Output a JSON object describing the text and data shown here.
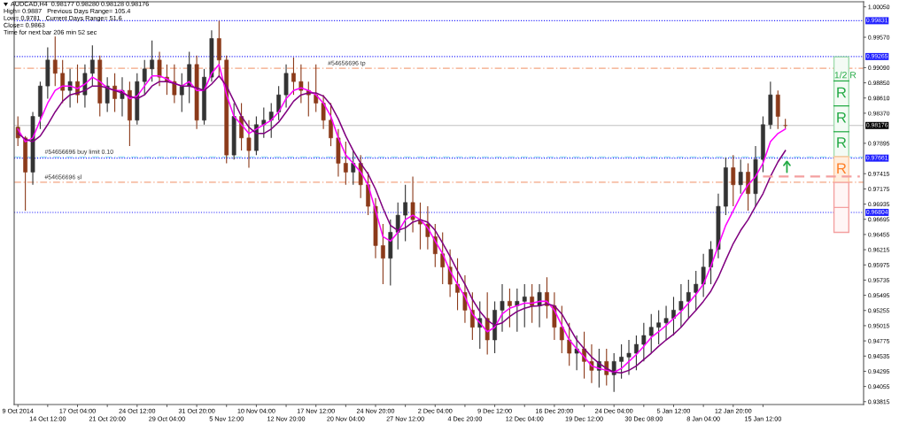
{
  "chart_data": {
    "type": "candlestick",
    "categories": [
      "9 Oct 2014",
      null,
      null,
      null,
      "14 Oct 12:00",
      null,
      null,
      null,
      "17 Oct 04:00",
      null,
      null,
      null,
      "21 Oct 20:00",
      null,
      null,
      null,
      "24 Oct 12:00",
      null,
      null,
      null,
      "29 Oct 04:00",
      null,
      null,
      null,
      "31 Oct 20:00",
      null,
      null,
      null,
      "5 Nov 12:00",
      null,
      null,
      null,
      "10 Nov 04:00",
      null,
      null,
      null,
      "12 Nov 20:00",
      null,
      null,
      null,
      "17 Nov 12:00",
      null,
      null,
      null,
      "20 Nov 04:00",
      null,
      null,
      null,
      "24 Nov 20:00",
      null,
      null,
      null,
      "27 Nov 12:00",
      null,
      null,
      null,
      "2 Dec 04:00",
      null,
      null,
      null,
      "4 Dec 20:00",
      null,
      null,
      null,
      "9 Dec 12:00",
      null,
      null,
      null,
      "12 Dec 04:00",
      null,
      null,
      null,
      "16 Dec 20:00",
      null,
      null,
      null,
      "19 Dec 12:00",
      null,
      null,
      null,
      "24 Dec 04:00",
      null,
      null,
      null,
      "30 Dec 08:00",
      null,
      null,
      null,
      "5 Jan 12:00",
      null,
      null,
      null,
      "8 Jan 04:00",
      null,
      null,
      null,
      "12 Jan 20:00",
      null,
      null,
      null,
      "15 Jan 12:00",
      null,
      null,
      null,
      null,
      null,
      null,
      null,
      null,
      null,
      null,
      null,
      null,
      null
    ],
    "ohlc": [
      [
        0.9815,
        0.9832,
        0.9785,
        0.9798
      ],
      [
        0.9798,
        0.9801,
        0.9683,
        0.9744
      ],
      [
        0.9744,
        0.9839,
        0.9724,
        0.9832
      ],
      [
        0.9832,
        0.9887,
        0.9812,
        0.988
      ],
      [
        0.988,
        0.9941,
        0.986,
        0.9921
      ],
      [
        0.9921,
        0.9958,
        0.988,
        0.99
      ],
      [
        0.99,
        0.9921,
        0.9853,
        0.9873
      ],
      [
        0.9873,
        0.9907,
        0.9846,
        0.9887
      ],
      [
        0.9887,
        0.9914,
        0.9853,
        0.9866
      ],
      [
        0.9866,
        0.9914,
        0.9846,
        0.99
      ],
      [
        0.99,
        0.9944,
        0.988,
        0.9921
      ],
      [
        0.9921,
        0.9928,
        0.9832,
        0.9853
      ],
      [
        0.9853,
        0.9894,
        0.9839,
        0.988
      ],
      [
        0.988,
        0.99,
        0.9839,
        0.986
      ],
      [
        0.986,
        0.9894,
        0.9832,
        0.9873
      ],
      [
        0.9873,
        0.9887,
        0.9785,
        0.9826
      ],
      [
        0.9826,
        0.99,
        0.9819,
        0.9887
      ],
      [
        0.9887,
        0.9921,
        0.9866,
        0.9907
      ],
      [
        0.9907,
        0.9952,
        0.9887,
        0.9921
      ],
      [
        0.9921,
        0.9934,
        0.988,
        0.9894
      ],
      [
        0.9894,
        0.9914,
        0.9866,
        0.9887
      ],
      [
        0.9887,
        0.9914,
        0.9853,
        0.9866
      ],
      [
        0.9866,
        0.99,
        0.9839,
        0.988
      ],
      [
        0.988,
        0.9934,
        0.9853,
        0.9914
      ],
      [
        0.9914,
        0.9928,
        0.9812,
        0.9826
      ],
      [
        0.9826,
        0.9907,
        0.9819,
        0.9894
      ],
      [
        0.9894,
        0.9968,
        0.9887,
        0.9955
      ],
      [
        0.9955,
        0.9983,
        0.9894,
        0.9921
      ],
      [
        0.9921,
        0.9928,
        0.9758,
        0.9771
      ],
      [
        0.9771,
        0.9853,
        0.9764,
        0.9832
      ],
      [
        0.9832,
        0.9853,
        0.9778,
        0.9798
      ],
      [
        0.9798,
        0.9826,
        0.9751,
        0.9778
      ],
      [
        0.9778,
        0.9832,
        0.9771,
        0.9819
      ],
      [
        0.9819,
        0.9846,
        0.9798,
        0.9826
      ],
      [
        0.9826,
        0.9853,
        0.9798,
        0.9839
      ],
      [
        0.9839,
        0.988,
        0.9826,
        0.9866
      ],
      [
        0.9866,
        0.9914,
        0.9846,
        0.99
      ],
      [
        0.99,
        0.9925,
        0.9866,
        0.9887
      ],
      [
        0.9887,
        0.9914,
        0.9853,
        0.9873
      ],
      [
        0.9873,
        0.9887,
        0.9832,
        0.9866
      ],
      [
        0.9866,
        0.9914,
        0.9839,
        0.9853
      ],
      [
        0.9853,
        0.9866,
        0.9812,
        0.9826
      ],
      [
        0.9826,
        0.9853,
        0.9785,
        0.9798
      ],
      [
        0.9798,
        0.9812,
        0.9737,
        0.9758
      ],
      [
        0.9758,
        0.9792,
        0.9724,
        0.9744
      ],
      [
        0.9744,
        0.9778,
        0.9724,
        0.9758
      ],
      [
        0.9758,
        0.9771,
        0.9703,
        0.9724
      ],
      [
        0.9724,
        0.9744,
        0.9676,
        0.969
      ],
      [
        0.969,
        0.9703,
        0.9608,
        0.9628
      ],
      [
        0.9628,
        0.9662,
        0.9567,
        0.9608
      ],
      [
        0.9608,
        0.9669,
        0.9565,
        0.9649
      ],
      [
        0.9649,
        0.9696,
        0.9622,
        0.9676
      ],
      [
        0.9676,
        0.9724,
        0.9635,
        0.9696
      ],
      [
        0.9696,
        0.9737,
        0.9649,
        0.9669
      ],
      [
        0.9669,
        0.9696,
        0.9622,
        0.9662
      ],
      [
        0.9662,
        0.969,
        0.9622,
        0.9642
      ],
      [
        0.9642,
        0.9662,
        0.9594,
        0.9615
      ],
      [
        0.9615,
        0.9649,
        0.9567,
        0.9594
      ],
      [
        0.9594,
        0.9622,
        0.9547,
        0.9567
      ],
      [
        0.9567,
        0.9608,
        0.9526,
        0.9554
      ],
      [
        0.9554,
        0.9581,
        0.9506,
        0.9526
      ],
      [
        0.9526,
        0.9554,
        0.9479,
        0.9499
      ],
      [
        0.9499,
        0.954,
        0.9465,
        0.9513
      ],
      [
        0.9513,
        0.9554,
        0.9456,
        0.9479
      ],
      [
        0.9479,
        0.954,
        0.9458,
        0.9526
      ],
      [
        0.9526,
        0.9567,
        0.9492,
        0.954
      ],
      [
        0.954,
        0.956,
        0.9499,
        0.9533
      ],
      [
        0.9533,
        0.956,
        0.9492,
        0.954
      ],
      [
        0.954,
        0.9567,
        0.9499,
        0.9547
      ],
      [
        0.9547,
        0.9567,
        0.9506,
        0.9533
      ],
      [
        0.9533,
        0.9567,
        0.9499,
        0.9554
      ],
      [
        0.9554,
        0.9578,
        0.9513,
        0.9533
      ],
      [
        0.9533,
        0.9554,
        0.9479,
        0.9499
      ],
      [
        0.9499,
        0.9533,
        0.9458,
        0.9479
      ],
      [
        0.9479,
        0.9506,
        0.9438,
        0.9458
      ],
      [
        0.9458,
        0.9486,
        0.9431,
        0.9465
      ],
      [
        0.9465,
        0.9492,
        0.9418,
        0.9445
      ],
      [
        0.9445,
        0.9472,
        0.9411,
        0.9431
      ],
      [
        0.9431,
        0.9465,
        0.9404,
        0.9445
      ],
      [
        0.9445,
        0.9465,
        0.9407,
        0.9424
      ],
      [
        0.9424,
        0.9458,
        0.9397,
        0.9445
      ],
      [
        0.9445,
        0.9472,
        0.9418,
        0.9452
      ],
      [
        0.9452,
        0.9479,
        0.9424,
        0.9458
      ],
      [
        0.9458,
        0.9486,
        0.9431,
        0.9472
      ],
      [
        0.9472,
        0.9506,
        0.9445,
        0.9486
      ],
      [
        0.9486,
        0.952,
        0.9458,
        0.9499
      ],
      [
        0.9499,
        0.9526,
        0.9472,
        0.9506
      ],
      [
        0.9506,
        0.9533,
        0.9479,
        0.9513
      ],
      [
        0.9513,
        0.9547,
        0.9486,
        0.9526
      ],
      [
        0.9526,
        0.9567,
        0.9499,
        0.954
      ],
      [
        0.954,
        0.9574,
        0.9513,
        0.9554
      ],
      [
        0.9554,
        0.9588,
        0.9526,
        0.9567
      ],
      [
        0.9567,
        0.9615,
        0.9547,
        0.9594
      ],
      [
        0.9594,
        0.9635,
        0.9567,
        0.9622
      ],
      [
        0.9622,
        0.971,
        0.9608,
        0.969
      ],
      [
        0.969,
        0.9767,
        0.9676,
        0.9751
      ],
      [
        0.9751,
        0.9771,
        0.969,
        0.9724
      ],
      [
        0.9724,
        0.9764,
        0.971,
        0.9744
      ],
      [
        0.9744,
        0.9758,
        0.9683,
        0.971
      ],
      [
        0.971,
        0.9785,
        0.969,
        0.9764
      ],
      [
        0.9764,
        0.9832,
        0.9744,
        0.9819
      ],
      [
        0.9819,
        0.9887,
        0.9812,
        0.9866
      ],
      [
        0.9866,
        0.9873,
        0.9812,
        0.9832
      ],
      [
        0.98177,
        0.9828,
        0.98128,
        0.98176
      ],
      null,
      null,
      null,
      null,
      null,
      null,
      null,
      null,
      null,
      null
    ],
    "colors": [
      "#8b3a1a",
      "#8b3a1a",
      "#333333",
      "#333333",
      "#333333",
      "#8b3a1a",
      "#8b3a1a",
      "#333333",
      "#8b3a1a",
      "#333333",
      "#333333",
      "#8b3a1a",
      "#333333",
      "#8b3a1a",
      "#333333",
      "#8b3a1a",
      "#333333",
      "#333333",
      "#333333",
      "#8b3a1a",
      "#8b3a1a",
      "#8b3a1a",
      "#333333",
      "#333333",
      "#8b3a1a",
      "#333333",
      "#333333",
      "#8b3a1a",
      "#8b3a1a",
      "#333333",
      "#8b3a1a",
      "#8b3a1a",
      "#333333",
      "#333333",
      "#333333",
      "#333333",
      "#333333",
      "#8b3a1a",
      "#8b3a1a",
      "#8b3a1a",
      "#8b3a1a",
      "#8b3a1a",
      "#8b3a1a",
      "#8b3a1a",
      "#8b3a1a",
      "#333333",
      "#8b3a1a",
      "#8b3a1a",
      "#8b3a1a",
      "#8b3a1a",
      "#333333",
      "#333333",
      "#333333",
      "#8b3a1a",
      "#8b3a1a",
      "#8b3a1a",
      "#8b3a1a",
      "#8b3a1a",
      "#8b3a1a",
      "#8b3a1a",
      "#8b3a1a",
      "#8b3a1a",
      "#333333",
      "#8b3a1a",
      "#333333",
      "#333333",
      "#8b3a1a",
      "#333333",
      "#333333",
      "#8b3a1a",
      "#333333",
      "#8b3a1a",
      "#8b3a1a",
      "#8b3a1a",
      "#8b3a1a",
      "#333333",
      "#8b3a1a",
      "#8b3a1a",
      "#333333",
      "#8b3a1a",
      "#333333",
      "#333333",
      "#333333",
      "#333333",
      "#333333",
      "#333333",
      "#333333",
      "#333333",
      "#333333",
      "#333333",
      "#333333",
      "#333333",
      "#333333",
      "#333333",
      "#333333",
      "#333333",
      "#8b3a1a",
      "#333333",
      "#8b3a1a",
      "#333333",
      "#333333",
      "#333333",
      "#8b3a1a",
      "#8b3a1a",
      null,
      null,
      null,
      null,
      null,
      null,
      null,
      null,
      null,
      null
    ],
    "series": [
      {
        "type": "line",
        "color": "#ff00ff",
        "values": [
          0.9812,
          0.9792,
          0.9798,
          0.9826,
          0.9853,
          0.9873,
          0.988,
          0.988,
          0.9876,
          0.9883,
          0.9894,
          0.9887,
          0.9877,
          0.9873,
          0.9873,
          0.986,
          0.9864,
          0.988,
          0.9896,
          0.9896,
          0.9891,
          0.9884,
          0.988,
          0.9887,
          0.9873,
          0.9873,
          0.99,
          0.9914,
          0.9866,
          0.9832,
          0.9819,
          0.9805,
          0.9812,
          0.9819,
          0.9826,
          0.9839,
          0.986,
          0.9873,
          0.9877,
          0.9873,
          0.9866,
          0.9853,
          0.9832,
          0.9798,
          0.9771,
          0.9758,
          0.9744,
          0.9724,
          0.9683,
          0.9642,
          0.9635,
          0.9649,
          0.9669,
          0.9676,
          0.9669,
          0.9656,
          0.9635,
          0.9615,
          0.9588,
          0.9567,
          0.9547,
          0.952,
          0.9506,
          0.9492,
          0.9499,
          0.952,
          0.9529,
          0.9533,
          0.9537,
          0.9537,
          0.954,
          0.954,
          0.9526,
          0.9502,
          0.9479,
          0.9465,
          0.9452,
          0.9438,
          0.9434,
          0.9431,
          0.9428,
          0.9434,
          0.9445,
          0.9456,
          0.9469,
          0.9483,
          0.9492,
          0.9502,
          0.9513,
          0.9524,
          0.9537,
          0.9551,
          0.9567,
          0.9595,
          0.9628,
          0.966,
          0.9683,
          0.9706,
          0.9724,
          0.9737,
          0.9758,
          0.9792,
          0.9805,
          0.9812,
          null,
          null,
          null,
          null,
          null,
          null,
          null,
          null,
          null,
          null
        ]
      },
      {
        "type": "line",
        "color": "#800080",
        "values": [
          0.9805,
          0.9796,
          0.9792,
          0.9801,
          0.9819,
          0.9839,
          0.9856,
          0.9866,
          0.9869,
          0.9873,
          0.988,
          0.988,
          0.9877,
          0.9873,
          0.9869,
          0.9864,
          0.986,
          0.9866,
          0.988,
          0.9887,
          0.9887,
          0.9884,
          0.988,
          0.988,
          0.9877,
          0.9873,
          0.9883,
          0.9896,
          0.988,
          0.9856,
          0.9832,
          0.9815,
          0.9805,
          0.9805,
          0.9812,
          0.9823,
          0.9839,
          0.9856,
          0.9866,
          0.9869,
          0.9869,
          0.9864,
          0.985,
          0.9828,
          0.9801,
          0.9778,
          0.9758,
          0.9741,
          0.9717,
          0.9687,
          0.966,
          0.9652,
          0.9656,
          0.9665,
          0.9669,
          0.9665,
          0.9652,
          0.9632,
          0.9611,
          0.9588,
          0.9567,
          0.9543,
          0.9524,
          0.951,
          0.9502,
          0.9506,
          0.9516,
          0.9524,
          0.9529,
          0.9532,
          0.9533,
          0.9536,
          0.9533,
          0.952,
          0.9499,
          0.9479,
          0.9465,
          0.9452,
          0.9442,
          0.9434,
          0.9428,
          0.9427,
          0.9431,
          0.9438,
          0.9448,
          0.9458,
          0.9469,
          0.9479,
          0.9488,
          0.9499,
          0.9513,
          0.9526,
          0.954,
          0.9556,
          0.9578,
          0.9605,
          0.9631,
          0.9652,
          0.9669,
          0.969,
          0.971,
          0.9737,
          0.976,
          0.9778,
          null,
          null,
          null,
          null,
          null,
          null,
          null,
          null,
          null,
          null
        ]
      },
      {
        "type": "line",
        "color": "#f4a0a0",
        "line_style": "dashed",
        "values": [
          null,
          null,
          null,
          null,
          null,
          null,
          null,
          null,
          null,
          null,
          null,
          null,
          null,
          null,
          null,
          null,
          null,
          null,
          null,
          null,
          null,
          null,
          null,
          null,
          null,
          null,
          null,
          null,
          null,
          null,
          null,
          null,
          null,
          null,
          null,
          null,
          null,
          null,
          null,
          null,
          null,
          null,
          null,
          null,
          null,
          null,
          null,
          null,
          null,
          null,
          null,
          null,
          null,
          null,
          null,
          null,
          null,
          null,
          null,
          null,
          null,
          null,
          null,
          null,
          null,
          null,
          null,
          null,
          null,
          null,
          null,
          null,
          null,
          null,
          null,
          null,
          null,
          null,
          null,
          null,
          null,
          null,
          null,
          null,
          null,
          null,
          null,
          null,
          null,
          null,
          null,
          null,
          null,
          null,
          null,
          null,
          null,
          null,
          null,
          null,
          0.9737,
          0.9737,
          0.9737,
          0.9737,
          0.9737,
          0.9737,
          0.9737,
          0.9737,
          0.9737,
          0.9737,
          0.9737,
          0.9737,
          0.9737,
          0.9737
        ]
      }
    ],
    "ylim": [
      0.9377,
      1.0013
    ],
    "yticks": [
      {
        "value": 1.0005,
        "label": "1.00050"
      },
      {
        "value": 0.9957,
        "label": "0.99570"
      },
      {
        "value": 0.9909,
        "label": "0.99090"
      },
      {
        "value": 0.9885,
        "label": "0.98850"
      },
      {
        "value": 0.9861,
        "label": "0.98610"
      },
      {
        "value": 0.9837,
        "label": "0.98370"
      },
      0.97895,
      0.97415,
      0.97175,
      0.96935,
      0.96695,
      0.96455,
      0.96215,
      0.95975,
      0.95735,
      0.95495,
      0.95255,
      0.95015,
      0.94775,
      0.94535,
      0.94295,
      0.94055,
      0.93815
    ],
    "ref_lines": [
      {
        "axis": "y",
        "value": 0.99831,
        "label": "0.99831",
        "color": "#2020ff",
        "line_style": "dotted"
      },
      {
        "axis": "y",
        "value": 0.99265,
        "label": "0.99265",
        "color": "#2020ff",
        "line_style": "dotted"
      },
      {
        "axis": "y",
        "value": 0.97661,
        "label": "0.97661",
        "color": "#2020ff",
        "line_style": "dotted"
      },
      {
        "axis": "y",
        "value": 0.96804,
        "label": "0.96804",
        "color": "#2020ff",
        "line_style": "dotted"
      },
      {
        "axis": "y",
        "value": 0.98176,
        "label": "0.98176",
        "color": "#c0c0c0",
        "line_style": "solid"
      },
      {
        "axis": "y",
        "value": 0.9908,
        "label": "#54656696 tp",
        "color": "#f4a582",
        "line_style": "dashdot"
      },
      {
        "axis": "y",
        "value": 0.9768,
        "label": "#54656696 buy limit 0.10",
        "color": "#8ad8f0",
        "line_style": "dashdot"
      },
      {
        "axis": "y",
        "value": 0.9728,
        "label": "#54656696 sl",
        "color": "#f4a582",
        "line_style": "dashdot"
      }
    ],
    "annotations": [
      "AUDCAD,H4  0.98177 0.98280 0.98128 0.98176",
      "High= 0.9887   Previous Days Range= 105.4",
      "Low= 0.9781   Current Days Range= 51.6",
      "Close= 0.9863",
      "Time for next bar 206 min 52 sec",
      "1/2 R",
      "R",
      "R",
      "R",
      "R"
    ]
  }
}
